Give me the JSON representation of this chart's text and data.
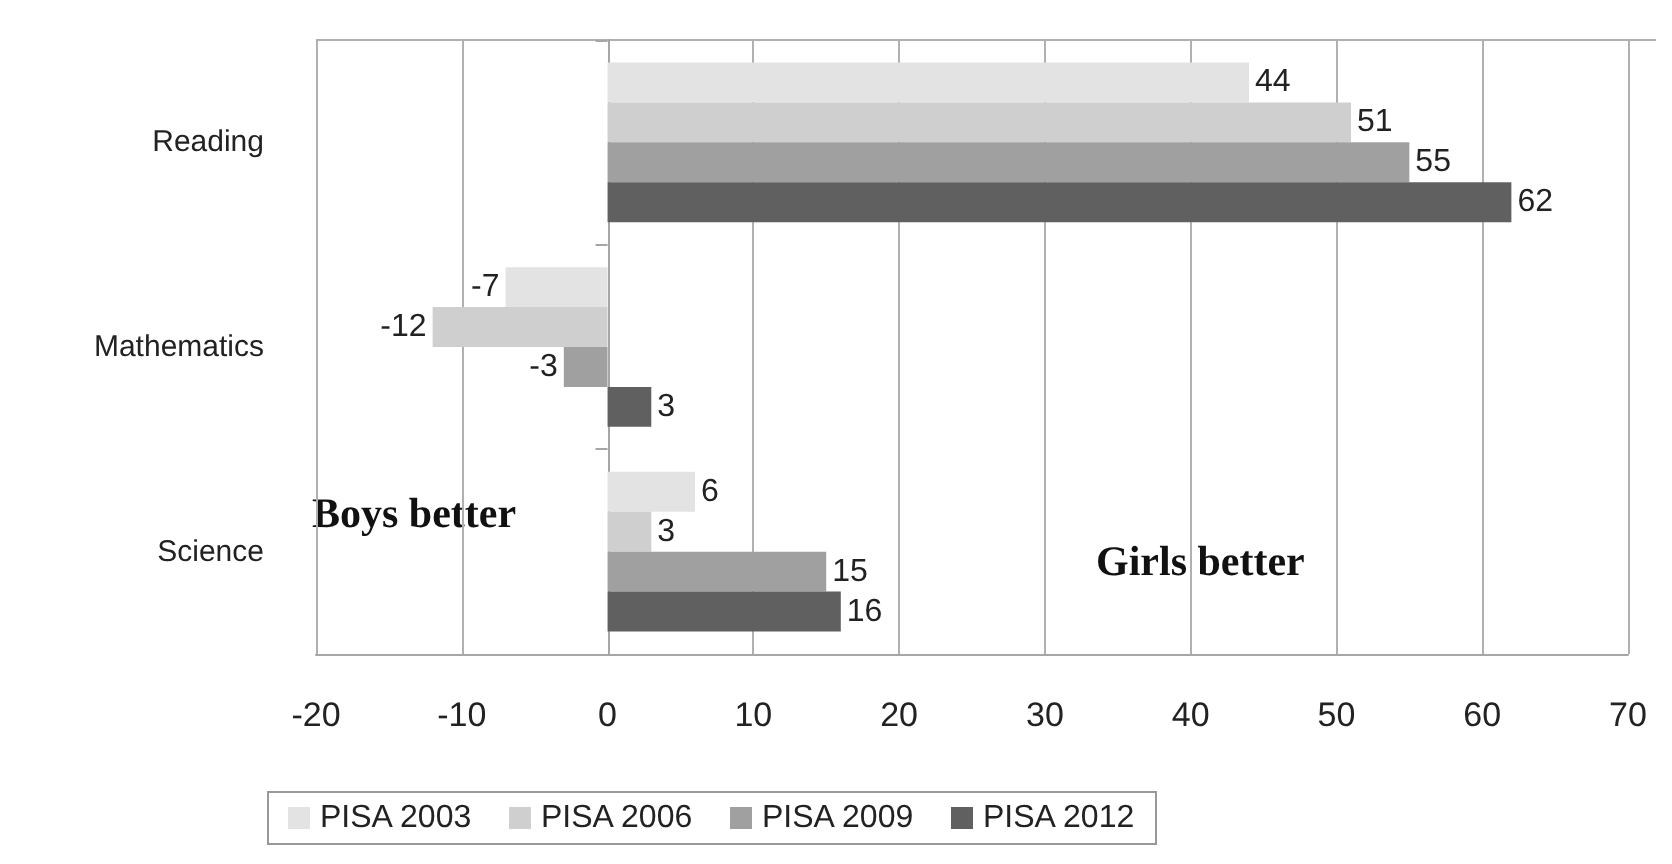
{
  "chart_data": {
    "type": "bar",
    "orientation": "horizontal",
    "categories": [
      "Reading",
      "Mathematics",
      "Science"
    ],
    "series": [
      {
        "name": "PISA 2003",
        "color": "#e3e3e3",
        "values": [
          44,
          -7,
          6
        ]
      },
      {
        "name": "PISA 2006",
        "color": "#cfcfcf",
        "values": [
          51,
          -12,
          3
        ]
      },
      {
        "name": "PISA 2009",
        "color": "#a0a0a0",
        "values": [
          55,
          -3,
          15
        ]
      },
      {
        "name": "PISA 2012",
        "color": "#606060",
        "values": [
          62,
          3,
          16
        ]
      }
    ],
    "xlim": [
      -20,
      70
    ],
    "xticks": [
      -20,
      -10,
      0,
      10,
      20,
      30,
      40,
      50,
      60,
      70
    ],
    "grid": "x",
    "legend": "bottom",
    "data_labels": true,
    "annotations": [
      "Boys better",
      "Girls better"
    ]
  }
}
